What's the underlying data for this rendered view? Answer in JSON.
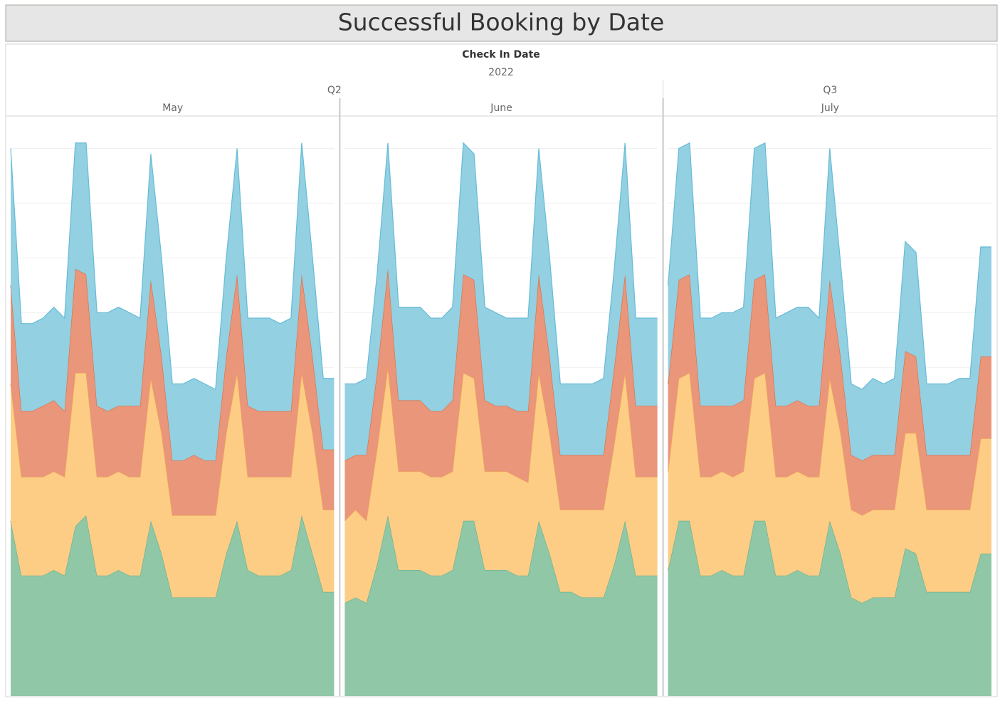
{
  "chart_data": {
    "type": "stacked-area",
    "title": "Successful Booking by Date",
    "header": "Check In Date",
    "year": "2022",
    "ylim": [
      0,
      105
    ],
    "gridlines": [
      10,
      20,
      30,
      40,
      50,
      60,
      70,
      80,
      90,
      100
    ],
    "colors": [
      "#8fc7a7",
      "#fdcd86",
      "#e9967a",
      "#92d0e2"
    ],
    "line_colors": [
      "#6aaf8a",
      "#f3ae52",
      "#e2693f",
      "#68bbd6"
    ],
    "quarters": [
      {
        "label": "Q2",
        "months": [
          {
            "label": "May",
            "series": [
              {
                "values": [
                  32,
                  22,
                  22,
                  22,
                  23,
                  22,
                  31,
                  33,
                  22,
                  22,
                  23,
                  22,
                  22,
                  32,
                  26,
                  18,
                  18,
                  18,
                  18,
                  18,
                  26,
                  32,
                  23,
                  22,
                  22,
                  22,
                  23,
                  33,
                  26,
                  19,
                  19
                ]
              },
              {
                "values": [
                  25,
                  18,
                  18,
                  18,
                  18,
                  18,
                  28,
                  26,
                  18,
                  18,
                  18,
                  18,
                  18,
                  26,
                  22,
                  15,
                  15,
                  15,
                  15,
                  15,
                  22,
                  27,
                  17,
                  18,
                  18,
                  18,
                  17,
                  26,
                  22,
                  15,
                  15
                ]
              },
              {
                "values": [
                  18,
                  12,
                  12,
                  13,
                  13,
                  12,
                  19,
                  18,
                  13,
                  12,
                  12,
                  13,
                  13,
                  18,
                  14,
                  10,
                  10,
                  11,
                  10,
                  10,
                  14,
                  18,
                  13,
                  12,
                  12,
                  12,
                  12,
                  18,
                  14,
                  11,
                  11
                ]
              },
              {
                "values": [
                  25,
                  16,
                  16,
                  16,
                  17,
                  17,
                  23,
                  24,
                  17,
                  18,
                  18,
                  17,
                  16,
                  23,
                  18,
                  14,
                  14,
                  14,
                  14,
                  13,
                  18,
                  23,
                  16,
                  17,
                  17,
                  16,
                  17,
                  24,
                  18,
                  13,
                  13
                ]
              }
            ]
          },
          {
            "label": "June",
            "series": [
              {
                "values": [
                  17,
                  18,
                  17,
                  24,
                  33,
                  23,
                  23,
                  23,
                  22,
                  22,
                  23,
                  32,
                  32,
                  23,
                  23,
                  23,
                  22,
                  22,
                  32,
                  26,
                  19,
                  19,
                  18,
                  18,
                  18,
                  24,
                  32,
                  22,
                  22,
                  22
                ]
              },
              {
                "values": [
                  15,
                  16,
                  15,
                  21,
                  27,
                  18,
                  18,
                  18,
                  18,
                  18,
                  18,
                  27,
                  26,
                  18,
                  18,
                  18,
                  18,
                  17,
                  27,
                  22,
                  15,
                  15,
                  16,
                  16,
                  16,
                  22,
                  27,
                  18,
                  18,
                  18
                ]
              },
              {
                "values": [
                  11,
                  10,
                  12,
                  14,
                  18,
                  13,
                  13,
                  13,
                  12,
                  12,
                  13,
                  18,
                  18,
                  13,
                  12,
                  12,
                  12,
                  13,
                  18,
                  14,
                  10,
                  10,
                  10,
                  10,
                  10,
                  14,
                  18,
                  13,
                  13,
                  13
                ]
              },
              {
                "values": [
                  14,
                  13,
                  14,
                  18,
                  23,
                  17,
                  17,
                  17,
                  17,
                  17,
                  17,
                  24,
                  23,
                  17,
                  17,
                  16,
                  17,
                  17,
                  23,
                  18,
                  13,
                  13,
                  13,
                  13,
                  14,
                  18,
                  24,
                  16,
                  16,
                  16
                ]
              }
            ]
          }
        ]
      },
      {
        "label": "Q3",
        "months": [
          {
            "label": "July",
            "series": [
              {
                "values": [
                  23,
                  32,
                  32,
                  22,
                  22,
                  23,
                  22,
                  22,
                  32,
                  32,
                  22,
                  22,
                  23,
                  22,
                  22,
                  32,
                  26,
                  18,
                  17,
                  18,
                  18,
                  18,
                  27,
                  26,
                  19,
                  19,
                  19,
                  19,
                  19,
                  26,
                  26
                ]
              },
              {
                "values": [
                  18,
                  26,
                  27,
                  18,
                  18,
                  18,
                  18,
                  19,
                  26,
                  27,
                  18,
                  18,
                  18,
                  18,
                  18,
                  26,
                  22,
                  16,
                  16,
                  16,
                  16,
                  16,
                  21,
                  22,
                  15,
                  15,
                  15,
                  15,
                  15,
                  21,
                  21
                ]
              },
              {
                "values": [
                  16,
                  18,
                  18,
                  13,
                  13,
                  12,
                  13,
                  13,
                  18,
                  18,
                  13,
                  13,
                  13,
                  13,
                  13,
                  18,
                  14,
                  10,
                  10,
                  10,
                  10,
                  10,
                  15,
                  14,
                  10,
                  10,
                  10,
                  10,
                  10,
                  15,
                  15
                ]
              },
              {
                "values": [
                  18,
                  24,
                  24,
                  16,
                  16,
                  17,
                  17,
                  17,
                  24,
                  24,
                  16,
                  17,
                  17,
                  18,
                  16,
                  24,
                  17,
                  13,
                  13,
                  14,
                  13,
                  14,
                  20,
                  19,
                  13,
                  13,
                  13,
                  14,
                  14,
                  20,
                  20
                ]
              }
            ]
          }
        ]
      }
    ]
  }
}
